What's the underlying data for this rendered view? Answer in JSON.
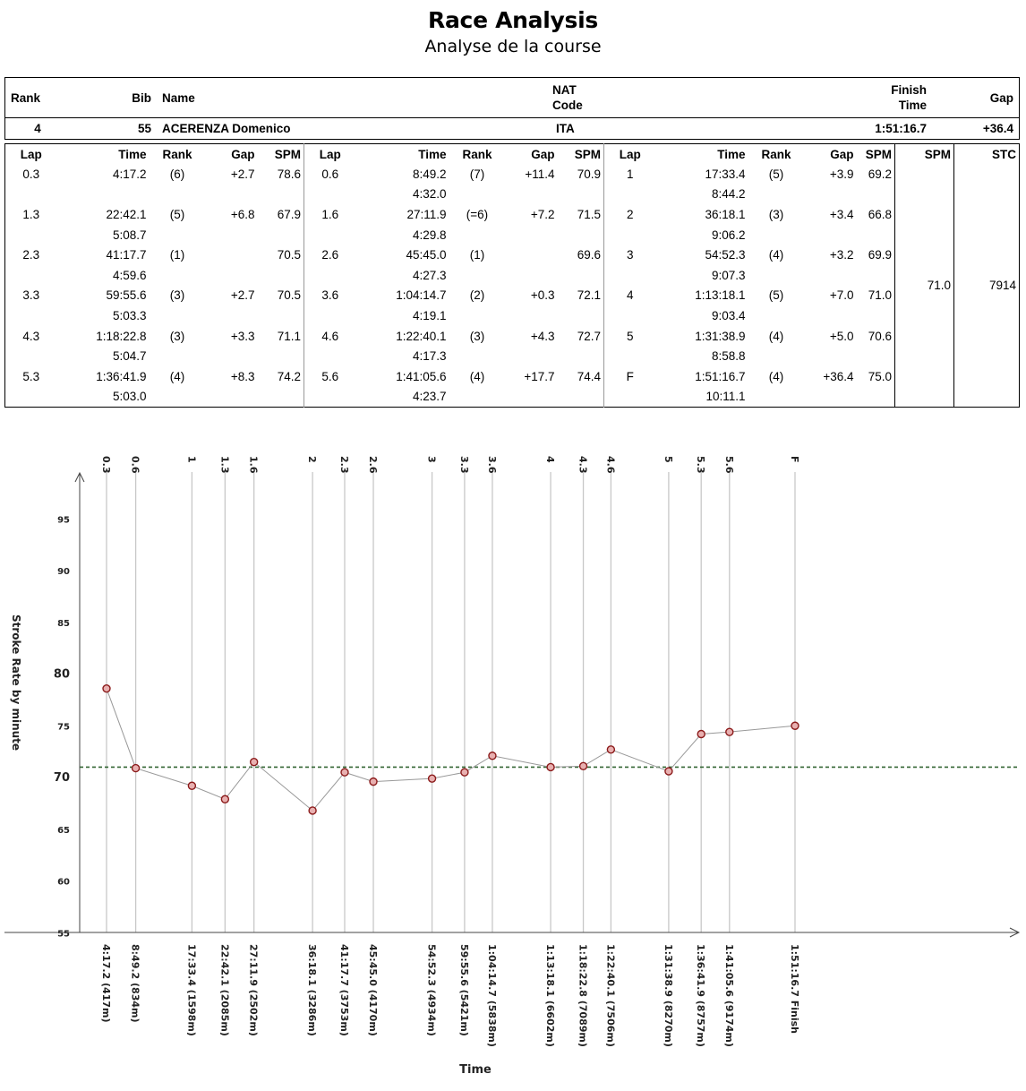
{
  "header": {
    "title": "Race Analysis",
    "subtitle": "Analyse de la course"
  },
  "summary": {
    "headers": {
      "rank": "Rank",
      "bib": "Bib",
      "name": "Name",
      "nat_code": "NAT Code",
      "finish_time": "Finish Time",
      "gap": "Gap"
    },
    "athlete": {
      "rank": "4",
      "bib": "55",
      "name": "ACERENZA Domenico",
      "nat": "ITA",
      "finish_time": "1:51:16.7",
      "gap": "+36.4"
    }
  },
  "laps_table": {
    "headers": {
      "lap": "Lap",
      "time": "Time",
      "rank": "Rank",
      "gap": "Gap",
      "spm": "SPM",
      "stc": "STC"
    },
    "rows": [
      [
        {
          "lap": "0.3",
          "time": "4:17.2",
          "split": "",
          "rank": "(6)",
          "gap": "+2.7",
          "spm": "78.6"
        },
        {
          "lap": "0.6",
          "time": "8:49.2",
          "split": "4:32.0",
          "rank": "(7)",
          "gap": "+11.4",
          "spm": "70.9"
        },
        {
          "lap": "1",
          "time": "17:33.4",
          "split": "8:44.2",
          "rank": "(5)",
          "gap": "+3.9",
          "spm": "69.2"
        }
      ],
      [
        {
          "lap": "1.3",
          "time": "22:42.1",
          "split": "5:08.7",
          "rank": "(5)",
          "gap": "+6.8",
          "spm": "67.9"
        },
        {
          "lap": "1.6",
          "time": "27:11.9",
          "split": "4:29.8",
          "rank": "(=6)",
          "gap": "+7.2",
          "spm": "71.5"
        },
        {
          "lap": "2",
          "time": "36:18.1",
          "split": "9:06.2",
          "rank": "(3)",
          "gap": "+3.4",
          "spm": "66.8"
        }
      ],
      [
        {
          "lap": "2.3",
          "time": "41:17.7",
          "split": "4:59.6",
          "rank": "(1)",
          "gap": "",
          "spm": "70.5"
        },
        {
          "lap": "2.6",
          "time": "45:45.0",
          "split": "4:27.3",
          "rank": "(1)",
          "gap": "",
          "spm": "69.6"
        },
        {
          "lap": "3",
          "time": "54:52.3",
          "split": "9:07.3",
          "rank": "(4)",
          "gap": "+3.2",
          "spm": "69.9"
        }
      ],
      [
        {
          "lap": "3.3",
          "time": "59:55.6",
          "split": "5:03.3",
          "rank": "(3)",
          "gap": "+2.7",
          "spm": "70.5"
        },
        {
          "lap": "3.6",
          "time": "1:04:14.7",
          "split": "4:19.1",
          "rank": "(2)",
          "gap": "+0.3",
          "spm": "72.1"
        },
        {
          "lap": "4",
          "time": "1:13:18.1",
          "split": "9:03.4",
          "rank": "(5)",
          "gap": "+7.0",
          "spm": "71.0"
        }
      ],
      [
        {
          "lap": "4.3",
          "time": "1:18:22.8",
          "split": "5:04.7",
          "rank": "(3)",
          "gap": "+3.3",
          "spm": "71.1"
        },
        {
          "lap": "4.6",
          "time": "1:22:40.1",
          "split": "4:17.3",
          "rank": "(3)",
          "gap": "+4.3",
          "spm": "72.7"
        },
        {
          "lap": "5",
          "time": "1:31:38.9",
          "split": "8:58.8",
          "rank": "(4)",
          "gap": "+5.0",
          "spm": "70.6"
        }
      ],
      [
        {
          "lap": "5.3",
          "time": "1:36:41.9",
          "split": "5:03.0",
          "rank": "(4)",
          "gap": "+8.3",
          "spm": "74.2"
        },
        {
          "lap": "5.6",
          "time": "1:41:05.6",
          "split": "4:23.7",
          "rank": "(4)",
          "gap": "+17.7",
          "spm": "74.4"
        },
        {
          "lap": "F",
          "time": "1:51:16.7",
          "split": "10:11.1",
          "rank": "(4)",
          "gap": "+36.4",
          "spm": "75.0"
        }
      ]
    ],
    "avg_spm": "71.0",
    "stc": "7914"
  },
  "chart_data": {
    "type": "line",
    "xlabel": "Time",
    "ylabel": "Stroke Rate by minute",
    "ylim": [
      52.5,
      99
    ],
    "y_ticks": [
      55,
      60,
      65,
      70,
      75,
      80,
      85,
      90,
      95
    ],
    "average_line": 71.0,
    "average_line_color": "#336633",
    "line_color": "#999999",
    "marker_color": "#8b1a1a",
    "points": [
      {
        "lap": "0.3",
        "time_label": "4:17.2 (417m)",
        "seconds": 257.2,
        "spm": 78.6
      },
      {
        "lap": "0.6",
        "time_label": "8:49.2 (834m)",
        "seconds": 529.2,
        "spm": 70.9
      },
      {
        "lap": "1",
        "time_label": "17:33.4 (1598m)",
        "seconds": 1053.4,
        "spm": 69.2
      },
      {
        "lap": "1.3",
        "time_label": "22:42.1 (2085m)",
        "seconds": 1362.1,
        "spm": 67.9
      },
      {
        "lap": "1.6",
        "time_label": "27:11.9 (2502m)",
        "seconds": 1631.9,
        "spm": 71.5
      },
      {
        "lap": "2",
        "time_label": "36:18.1 (3286m)",
        "seconds": 2178.1,
        "spm": 66.8
      },
      {
        "lap": "2.3",
        "time_label": "41:17.7 (3753m)",
        "seconds": 2477.7,
        "spm": 70.5
      },
      {
        "lap": "2.6",
        "time_label": "45:45.0 (4170m)",
        "seconds": 2745.0,
        "spm": 69.6
      },
      {
        "lap": "3",
        "time_label": "54:52.3 (4934m)",
        "seconds": 3292.3,
        "spm": 69.9
      },
      {
        "lap": "3.3",
        "time_label": "59:55.6 (5421m)",
        "seconds": 3595.6,
        "spm": 70.5
      },
      {
        "lap": "3.6",
        "time_label": "1:04:14.7 (5838m)",
        "seconds": 3854.7,
        "spm": 72.1
      },
      {
        "lap": "4",
        "time_label": "1:13:18.1 (6602m)",
        "seconds": 4398.1,
        "spm": 71.0
      },
      {
        "lap": "4.3",
        "time_label": "1:18:22.8 (7089m)",
        "seconds": 4702.8,
        "spm": 71.1
      },
      {
        "lap": "4.6",
        "time_label": "1:22:40.1 (7506m)",
        "seconds": 4960.1,
        "spm": 72.7
      },
      {
        "lap": "5",
        "time_label": "1:31:38.9 (8270m)",
        "seconds": 5498.9,
        "spm": 70.6
      },
      {
        "lap": "5.3",
        "time_label": "1:36:41.9 (8757m)",
        "seconds": 5801.9,
        "spm": 74.2
      },
      {
        "lap": "5.6",
        "time_label": "1:41:05.6 (9174m)",
        "seconds": 6065.6,
        "spm": 74.4
      },
      {
        "lap": "F",
        "time_label": "1:51:16.7 Finish",
        "seconds": 6676.7,
        "spm": 75.0
      }
    ]
  }
}
